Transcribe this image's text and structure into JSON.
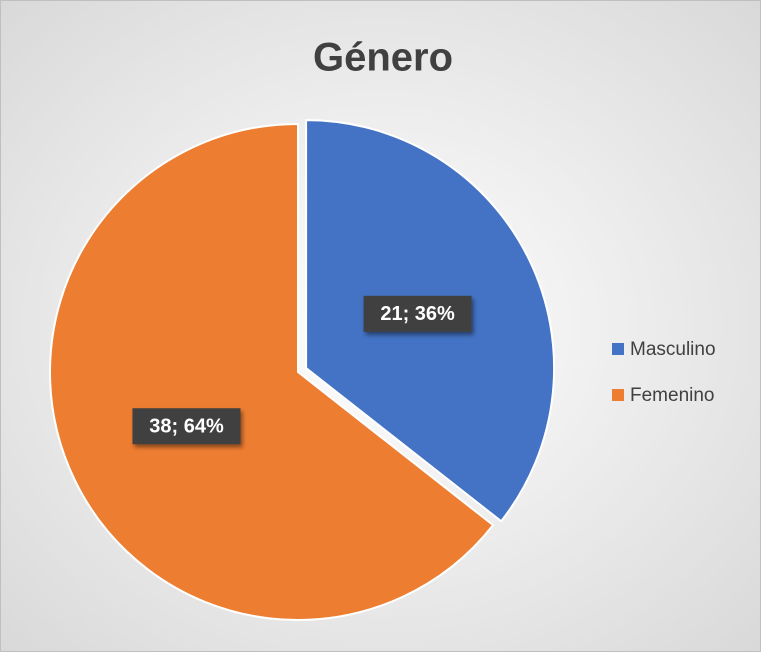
{
  "chart_data": {
    "type": "pie",
    "title": "Género",
    "categories": [
      "Masculino",
      "Femenino"
    ],
    "values": [
      21,
      38
    ],
    "value_labels": [
      "21; 36%",
      "38; 64%"
    ],
    "colors": [
      "#4472c4",
      "#ed7d31"
    ],
    "legend": "right"
  }
}
